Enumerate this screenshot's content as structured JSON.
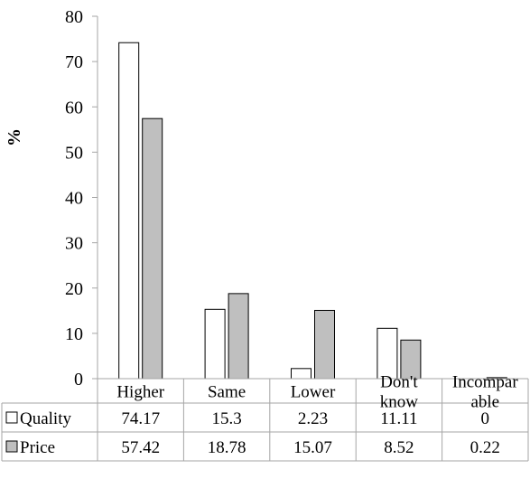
{
  "chart_data": {
    "type": "bar",
    "ylabel": "%",
    "ylim": [
      0,
      80
    ],
    "yticks": [
      0,
      10,
      20,
      30,
      40,
      50,
      60,
      70,
      80
    ],
    "grid": false,
    "legend": "data-table-left",
    "categories": [
      [
        "Higher"
      ],
      [
        "Same"
      ],
      [
        "Lower"
      ],
      [
        "Don't",
        "know"
      ],
      [
        "Incompar",
        "able"
      ]
    ],
    "series": [
      {
        "name": "Quality",
        "color": "#ffffff",
        "values": [
          74.17,
          15.3,
          2.23,
          11.11,
          0
        ],
        "labels": [
          "74.17",
          "15.3",
          "2.23",
          "11.11",
          "0"
        ]
      },
      {
        "name": "Price",
        "color": "#bfbfbf",
        "values": [
          57.42,
          18.78,
          15.07,
          8.52,
          0.22
        ],
        "labels": [
          "57.42",
          "18.78",
          "15.07",
          "8.52",
          "0.22"
        ]
      }
    ]
  }
}
